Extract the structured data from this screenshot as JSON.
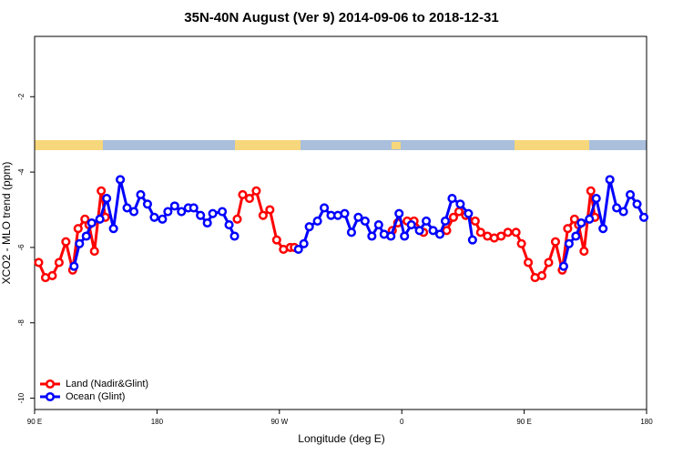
{
  "chart_data": {
    "type": "line",
    "title": "35N-40N August (Ver 9)   2014-09-06 to 2018-12-31",
    "x_label": "Longitude (deg E)",
    "y_label": "XCO2 - MLO trend (ppm)",
    "xlim": [
      90,
      540
    ],
    "ylim": [
      -10.3,
      -0.4
    ],
    "xticks": [
      {
        "value": 90,
        "label": "90 E"
      },
      180,
      {
        "value": 270,
        "label": "90 W"
      },
      {
        "value": 360,
        "label": "0"
      },
      {
        "value": 450,
        "label": "90 E"
      },
      {
        "value": 540,
        "label": "180"
      }
    ],
    "yticks": [
      -10,
      -8,
      -6,
      -4,
      -2
    ],
    "legend": "bottom left",
    "series": [
      {
        "name": "Land (Nadir&Glint)",
        "color": "#ff0000",
        "x": [
          93,
          98,
          103,
          108,
          113,
          118,
          122,
          127,
          130,
          134,
          139,
          142,
          190,
          239,
          243,
          248,
          253,
          258,
          263,
          268,
          273,
          278,
          281,
          350,
          353,
          357,
          364,
          369,
          376,
          385,
          393,
          398,
          402,
          407,
          414,
          418,
          423,
          428,
          433,
          438,
          444,
          448,
          453,
          458,
          463,
          468,
          473,
          478,
          482,
          487,
          490,
          494,
          499,
          502
        ],
        "values": [
          -6.4,
          -6.8,
          -6.75,
          -6.4,
          -5.85,
          -6.6,
          -5.5,
          -5.25,
          -5.4,
          -6.1,
          -4.5,
          -5.2,
          null,
          -5.25,
          -4.6,
          -4.7,
          -4.5,
          -5.15,
          -5.0,
          -5.8,
          -6.05,
          -6.0,
          -6.0,
          null,
          -5.55,
          -5.35,
          -5.3,
          -5.3,
          -5.6,
          null,
          -5.55,
          -5.2,
          -5.05,
          -5.15,
          -5.3,
          -5.6,
          -5.7,
          -5.75,
          -5.7,
          -5.6,
          -5.6,
          -5.9,
          -6.4,
          -6.8,
          -6.75,
          -6.4,
          -5.85,
          -6.6,
          -5.5,
          -5.25,
          -5.4,
          -6.1,
          -4.5,
          -5.2
        ]
      },
      {
        "name": "Ocean (Glint)",
        "color": "#0000ff",
        "x": [
          119,
          123,
          128,
          132,
          138,
          143,
          148,
          153,
          158,
          163,
          168,
          173,
          178,
          184,
          188,
          193,
          198,
          203,
          207,
          212,
          217,
          221,
          228,
          233,
          237,
          260,
          284,
          288,
          292,
          298,
          303,
          308,
          313,
          318,
          323,
          328,
          333,
          338,
          343,
          347,
          352,
          358,
          362,
          367,
          373,
          378,
          383,
          388,
          392,
          397,
          403,
          409,
          412,
          445,
          479,
          483,
          488,
          492,
          498,
          503,
          508,
          513,
          518,
          523,
          528,
          533,
          538
        ],
        "values": [
          -6.5,
          -5.9,
          -5.7,
          -5.35,
          -5.25,
          -4.7,
          -5.5,
          -4.2,
          -4.95,
          -5.05,
          -4.6,
          -4.85,
          -5.2,
          -5.25,
          -5.05,
          -4.9,
          -5.05,
          -4.95,
          -4.95,
          -5.15,
          -5.35,
          -5.1,
          -5.05,
          -5.4,
          -5.7,
          null,
          -6.05,
          -5.9,
          -5.45,
          -5.3,
          -4.95,
          -5.15,
          -5.15,
          -5.1,
          -5.6,
          -5.2,
          -5.3,
          -5.7,
          -5.4,
          -5.65,
          -5.7,
          -5.1,
          -5.7,
          -5.4,
          -5.55,
          -5.3,
          -5.55,
          -5.65,
          -5.3,
          -4.7,
          -4.85,
          -5.1,
          -5.8,
          null,
          -6.5,
          -5.9,
          -5.7,
          -5.35,
          -5.25,
          -4.7,
          -5.5,
          -4.2,
          -4.95,
          -5.05,
          -4.6,
          -4.85,
          -5.2
        ]
      }
    ]
  }
}
